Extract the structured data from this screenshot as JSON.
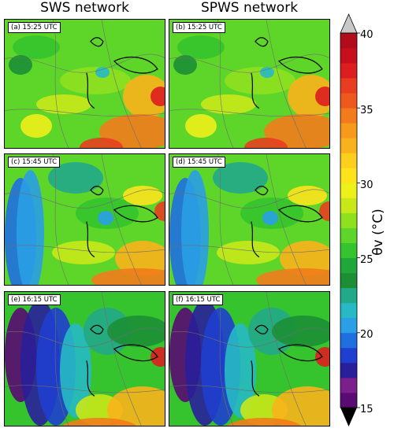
{
  "columns": [
    "SWS network",
    "SPWS network"
  ],
  "panels": [
    {
      "label": "(a) 15:25 UTC"
    },
    {
      "label": "(b) 15:25 UTC"
    },
    {
      "label": "(c) 15:45 UTC"
    },
    {
      "label": "(d) 15:45 UTC"
    },
    {
      "label": "(e) 16:15 UTC"
    },
    {
      "label": "(f) 16:15 UTC"
    }
  ],
  "colorbar": {
    "ticks": [
      "40",
      "35",
      "30",
      "25",
      "20",
      "15"
    ],
    "label": "θv (°C)",
    "min": 15,
    "max": 40,
    "step": 1,
    "colors": [
      "#5a0a73",
      "#7a1f8c",
      "#2a1f9a",
      "#1f3fd0",
      "#1f6fe0",
      "#2a9fe6",
      "#27b9c4",
      "#22a98a",
      "#1c8f35",
      "#1fa83a",
      "#35c42d",
      "#5ed629",
      "#8fe01f",
      "#c8e81a",
      "#eef01a",
      "#fce31c",
      "#fccf1c",
      "#f9b21b",
      "#f79a1b",
      "#f27c1b",
      "#ee5a1c",
      "#e83e1f",
      "#dd1e20",
      "#c80f1e",
      "#b00c1b"
    ],
    "over_color": "#c8c8c8",
    "under_color": "#000000"
  },
  "chart_data": {
    "type": "heatmap",
    "variable": "θv",
    "units": "°C",
    "range": [
      15,
      40
    ],
    "panels": [
      {
        "network": "SWS network",
        "time": "15:25 UTC"
      },
      {
        "network": "SPWS network",
        "time": "15:25 UTC"
      },
      {
        "network": "SWS network",
        "time": "15:45 UTC"
      },
      {
        "network": "SPWS network",
        "time": "15:45 UTC"
      },
      {
        "network": "SWS network",
        "time": "16:15 UTC"
      },
      {
        "network": "SPWS network",
        "time": "16:15 UTC"
      }
    ]
  }
}
